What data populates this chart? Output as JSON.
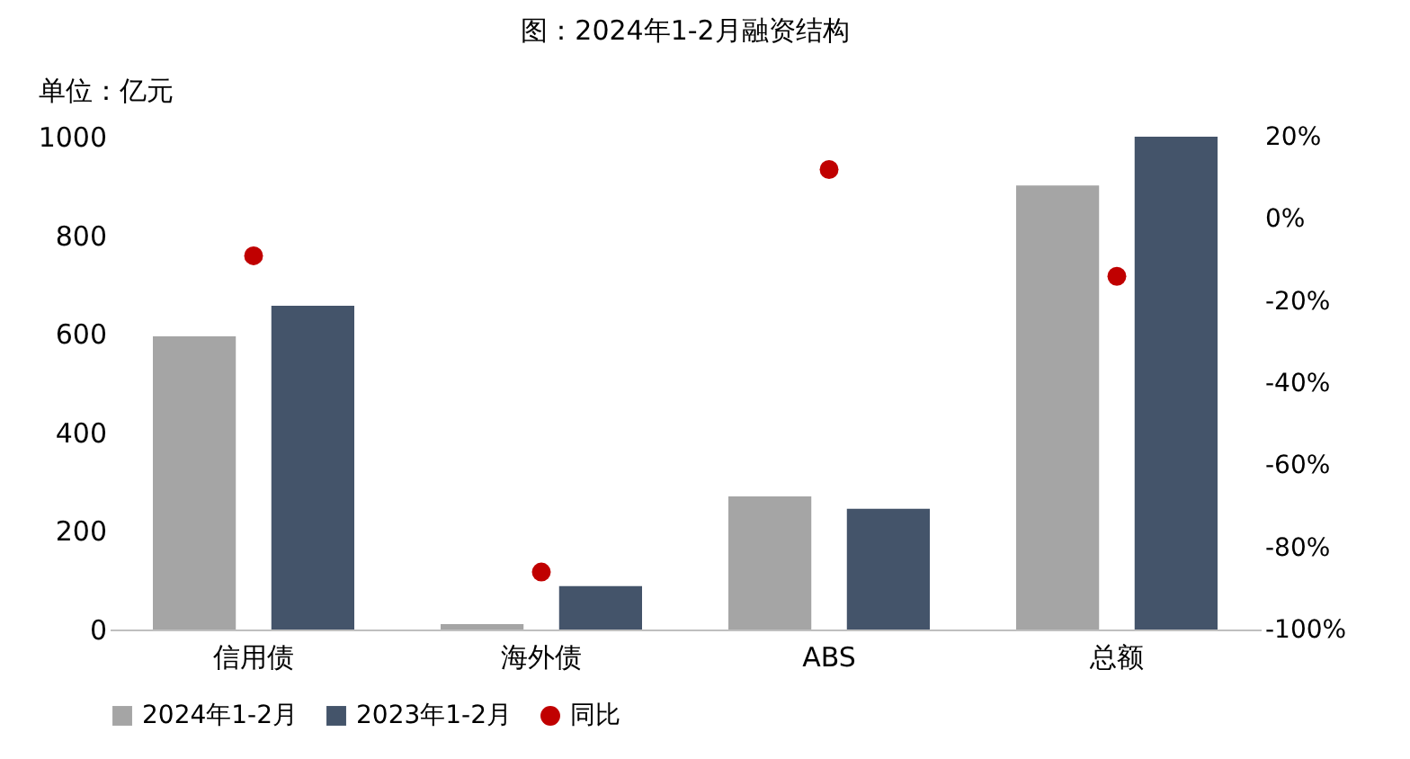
{
  "chart_data": {
    "type": "bar",
    "title": "图：2024年1-2月融资结构",
    "ylabel": "单位：亿元",
    "categories": [
      "信用债",
      "海外债",
      "ABS",
      "总额"
    ],
    "series": [
      {
        "name": "2024年1-2月",
        "color": "#a5a5a5",
        "values": [
          595,
          11,
          270,
          901
        ]
      },
      {
        "name": "2023年1-2月",
        "color": "#44546a",
        "values": [
          657,
          88,
          245,
          1000
        ]
      },
      {
        "name": "同比",
        "type": "scatter",
        "axis": "y2",
        "marker": "circle",
        "color": "#c00000",
        "values": [
          -9,
          -86,
          12,
          -14
        ]
      }
    ],
    "ylim": [
      0,
      1000
    ],
    "yticks": [
      0,
      200,
      400,
      600,
      800,
      1000
    ],
    "y2lim": [
      -100,
      20
    ],
    "y2ticks": [
      {
        "value": -100,
        "label": "-100%"
      },
      {
        "value": -80,
        "label": "-80%"
      },
      {
        "value": -60,
        "label": "-60%"
      },
      {
        "value": -40,
        "label": "-40%"
      },
      {
        "value": -20,
        "label": "-20%"
      },
      {
        "value": 0,
        "label": "0%"
      },
      {
        "value": 20,
        "label": "20%"
      }
    ],
    "grid": false,
    "legend": "bottom"
  }
}
